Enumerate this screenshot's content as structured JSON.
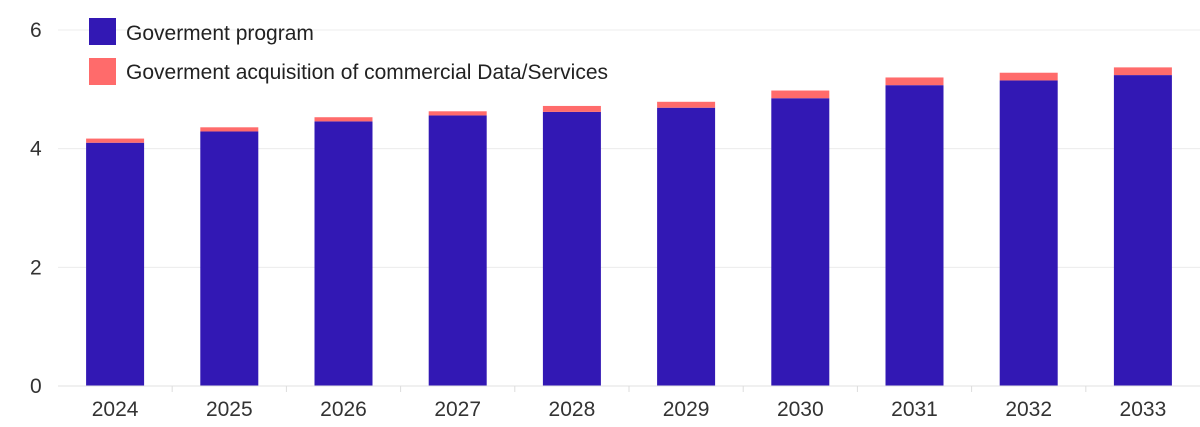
{
  "chart_data": {
    "type": "bar",
    "stacked": true,
    "title": "",
    "xlabel": "",
    "ylabel": "",
    "categories": [
      "2024",
      "2025",
      "2026",
      "2027",
      "2028",
      "2029",
      "2030",
      "2031",
      "2032",
      "2033"
    ],
    "series": [
      {
        "name": "Goverment program",
        "color": "#3218b4",
        "values": [
          4.1,
          4.29,
          4.46,
          4.56,
          4.62,
          4.69,
          4.85,
          5.07,
          5.15,
          5.24
        ]
      },
      {
        "name": "Goverment acquisition of commercial Data/Services",
        "color": "#ff6b6b",
        "values": [
          0.07,
          0.07,
          0.07,
          0.07,
          0.1,
          0.1,
          0.13,
          0.13,
          0.13,
          0.13
        ]
      }
    ],
    "ylim": [
      0,
      6
    ],
    "yticks": [
      0,
      2,
      4,
      6
    ],
    "grid": true,
    "legend_position": "top-left"
  }
}
